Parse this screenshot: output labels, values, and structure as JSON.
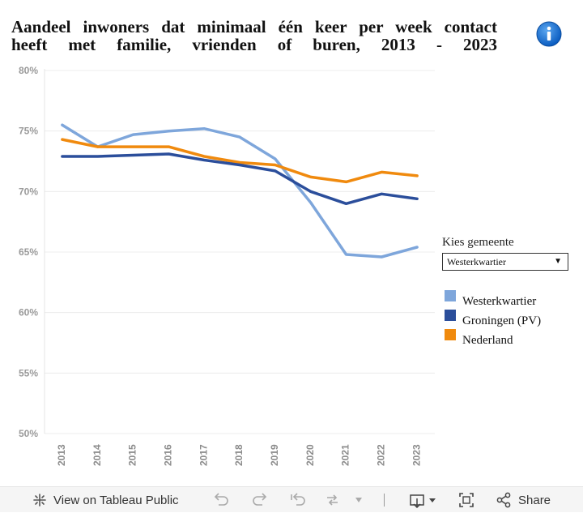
{
  "title_lines": [
    "Aandeel inwoners dat minimaal één keer per week contact",
    "heeft met familie, vrienden of buren, 2013 - 2023"
  ],
  "info_icon": "info-icon",
  "filter": {
    "label": "Kies gemeente",
    "selected": "Westerkwartier"
  },
  "legend": [
    {
      "label": "Westerkwartier",
      "color": "#7ea6db"
    },
    {
      "label": "Groningen (PV)",
      "color": "#2b4e9b"
    },
    {
      "label": "Nederland",
      "color": "#f08a0e"
    }
  ],
  "chart_data": {
    "type": "line",
    "x": [
      2013,
      2014,
      2015,
      2016,
      2017,
      2018,
      2019,
      2020,
      2021,
      2022,
      2023
    ],
    "ylim": [
      50,
      80
    ],
    "yticks": [
      50,
      55,
      60,
      65,
      70,
      75,
      80
    ],
    "ytick_labels": [
      "50%",
      "55%",
      "60%",
      "65%",
      "70%",
      "75%",
      "80%"
    ],
    "grid": true,
    "series": [
      {
        "name": "Westerkwartier",
        "color": "#7ea6db",
        "values": [
          75.5,
          73.7,
          74.7,
          75.0,
          75.2,
          74.5,
          72.7,
          69.1,
          64.8,
          64.6,
          65.4
        ]
      },
      {
        "name": "Nederland",
        "color": "#f08a0e",
        "values": [
          74.3,
          73.7,
          73.7,
          73.7,
          72.9,
          72.4,
          72.2,
          71.2,
          70.8,
          71.6,
          71.3
        ]
      },
      {
        "name": "Groningen (PV)",
        "color": "#2b4e9b",
        "values": [
          72.9,
          72.9,
          73.0,
          73.1,
          72.6,
          72.2,
          71.7,
          70.0,
          69.0,
          69.8,
          69.4
        ]
      }
    ]
  },
  "toolbar": {
    "view_label": "View on Tableau Public",
    "share_label": "Share",
    "icons": [
      "tableau-icon",
      "undo-icon",
      "redo-icon",
      "revert-icon",
      "refresh-icon",
      "dropdown-icon",
      "download-icon",
      "fullscreen-icon",
      "share-icon"
    ]
  }
}
